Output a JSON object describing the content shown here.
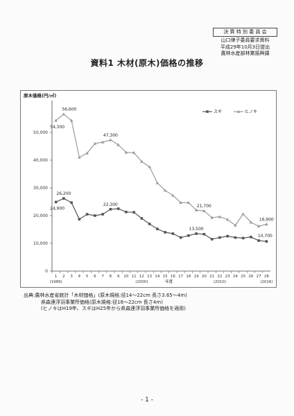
{
  "stamp": {
    "committee": "決 算 特 別 委 員 会",
    "lines": [
      "山口律子委員要求資料",
      "平成29年10月3日提出",
      "農林水産部林業振興課"
    ]
  },
  "title": "資料1 木材(原木)価格の推移",
  "chart_data": {
    "type": "line",
    "ylabel": "原木価格(円/㎥)",
    "xlabel": "年度",
    "ylim": [
      0,
      60000
    ],
    "y_ticks": [
      "0",
      "10,000",
      "20,000",
      "30,000",
      "40,000",
      "50,000"
    ],
    "x": [
      "1",
      "2",
      "3",
      "4",
      "5",
      "6",
      "7",
      "8",
      "9",
      "10",
      "11",
      "12",
      "13",
      "14",
      "15",
      "16",
      "17",
      "18",
      "19",
      "20",
      "21",
      "22",
      "23",
      "24",
      "25",
      "26",
      "27",
      "28"
    ],
    "era_labels": [
      {
        "at": "1",
        "text": "(1989)"
      },
      {
        "at": "12",
        "text": "(2000)"
      },
      {
        "at": "22",
        "text": "(2010)"
      },
      {
        "at": "28",
        "text": "(2016)"
      }
    ],
    "series": [
      {
        "name": "スギ",
        "color": "#555555",
        "marker": "square",
        "values": [
          24900,
          26200,
          24700,
          18700,
          20500,
          20000,
          20500,
          22300,
          22500,
          21300,
          21200,
          19000,
          17000,
          15200,
          14000,
          13500,
          12100,
          12800,
          13500,
          13300,
          11500,
          12100,
          12600,
          12100,
          11900,
          12300,
          11000,
          10700
        ]
      },
      {
        "name": "ヒノキ",
        "color": "#9a9a9a",
        "marker": "triangle",
        "values": [
          54300,
          56600,
          54300,
          41000,
          42500,
          46000,
          46500,
          47300,
          45500,
          42800,
          42700,
          39500,
          37600,
          31800,
          29100,
          27300,
          24700,
          24700,
          22000,
          21700,
          19300,
          19600,
          18600,
          16500,
          20600,
          17600,
          16200,
          16900
        ]
      }
    ],
    "annotations": [
      {
        "series": 1,
        "x": "1",
        "text": "54,300"
      },
      {
        "series": 1,
        "x": "2",
        "text": "56,600"
      },
      {
        "series": 1,
        "x": "8",
        "text": "47,300"
      },
      {
        "series": 1,
        "x": "20",
        "text": "21,700"
      },
      {
        "series": 1,
        "x": "28",
        "text": "16,900"
      },
      {
        "series": 0,
        "x": "1",
        "text": "24,900"
      },
      {
        "series": 0,
        "x": "2",
        "text": "26,200"
      },
      {
        "series": 0,
        "x": "8",
        "text": "22,300"
      },
      {
        "series": 0,
        "x": "19",
        "text": "13,500"
      },
      {
        "series": 0,
        "x": "28",
        "text": "10,700"
      }
    ],
    "legend": "top-right",
    "grid": false
  },
  "source_notes": [
    "出典:農林水産省統計「木材価格」(原木規格:径14〜22cm 長さ3.65〜4m)",
    "県森連浮羽事業所価格(原木規格:径18〜22cm 長さ4m)",
    "(ヒノキはH19年、スギはH25年から県森連浮羽事業所価格を適用)"
  ],
  "page_number": "- 1 -"
}
